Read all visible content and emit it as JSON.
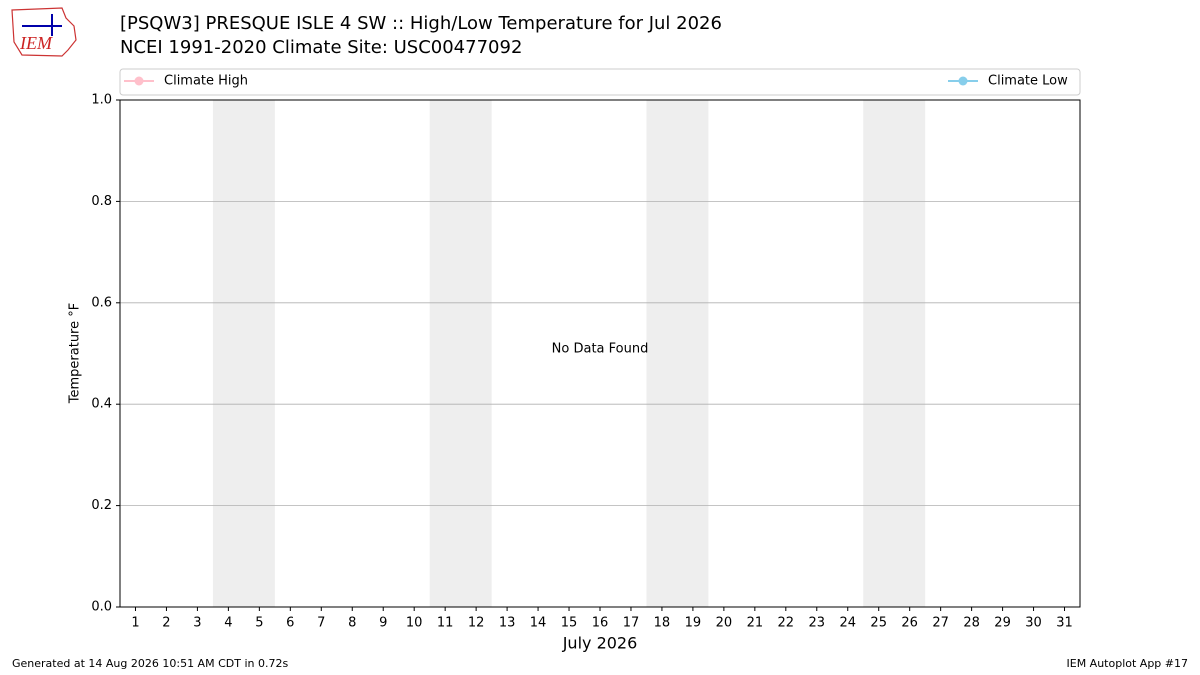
{
  "chart_data": {
    "type": "line",
    "title": "[PSQW3] PRESQUE ISLE 4 SW :: High/Low Temperature for Jul 2026",
    "subtitle": "NCEI 1991-2020 Climate Site: USC00477092",
    "x_label": "July 2026",
    "y_label": "Temperature °F",
    "annotation": "No Data Found",
    "x": [
      1,
      2,
      3,
      4,
      5,
      6,
      7,
      8,
      9,
      10,
      11,
      12,
      13,
      14,
      15,
      16,
      17,
      18,
      19,
      20,
      21,
      22,
      23,
      24,
      25,
      26,
      27,
      28,
      29,
      30,
      31
    ],
    "series": [
      {
        "name": "Climate High",
        "color": "#ffc0cb",
        "values": [
          null,
          null,
          null,
          null,
          null,
          null,
          null,
          null,
          null,
          null,
          null,
          null,
          null,
          null,
          null,
          null,
          null,
          null,
          null,
          null,
          null,
          null,
          null,
          null,
          null,
          null,
          null,
          null,
          null,
          null,
          null
        ]
      },
      {
        "name": "Climate Low",
        "color": "#87ceeb",
        "values": [
          null,
          null,
          null,
          null,
          null,
          null,
          null,
          null,
          null,
          null,
          null,
          null,
          null,
          null,
          null,
          null,
          null,
          null,
          null,
          null,
          null,
          null,
          null,
          null,
          null,
          null,
          null,
          null,
          null,
          null,
          null
        ]
      }
    ],
    "xlim": [
      0.5,
      31.5
    ],
    "xticks": [
      1,
      2,
      3,
      4,
      5,
      6,
      7,
      8,
      9,
      10,
      11,
      12,
      13,
      14,
      15,
      16,
      17,
      18,
      19,
      20,
      21,
      22,
      23,
      24,
      25,
      26,
      27,
      28,
      29,
      30,
      31
    ],
    "ylim": [
      0,
      1
    ],
    "yticks": [
      {
        "value": 0,
        "label": "0.0"
      },
      {
        "value": 0.2,
        "label": "0.2"
      },
      {
        "value": 0.4,
        "label": "0.4"
      },
      {
        "value": 0.6,
        "label": "0.6"
      },
      {
        "value": 0.8,
        "label": "0.8"
      },
      {
        "value": 1,
        "label": "1.0"
      }
    ],
    "grid": true,
    "shaded_spans": [
      [
        3.5,
        5.5
      ],
      [
        10.5,
        12.5
      ],
      [
        17.5,
        19.5
      ],
      [
        24.5,
        26.5
      ]
    ],
    "shade_color": "#eeeeee"
  },
  "logo_text": "IEM",
  "footer_left": "Generated at 14 Aug 2026 10:51 AM CDT in 0.72s",
  "footer_right": "IEM Autoplot App #17"
}
